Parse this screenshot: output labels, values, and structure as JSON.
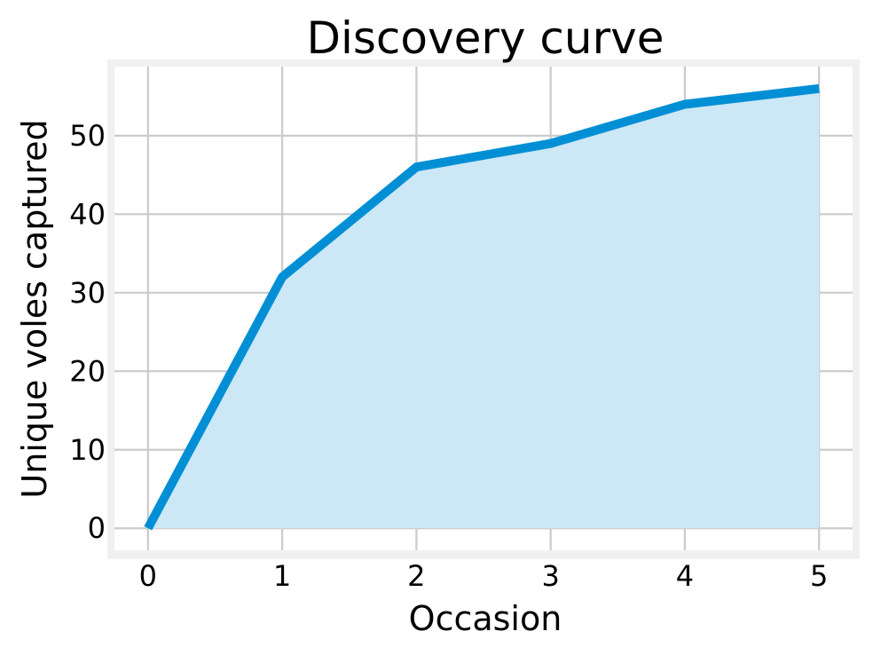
{
  "chart_data": {
    "type": "area",
    "title": "Discovery curve",
    "xlabel": "Occasion",
    "ylabel": "Unique voles captured",
    "x": [
      0,
      1,
      2,
      3,
      4,
      5
    ],
    "series": [
      {
        "values": [
          0,
          32,
          46,
          49,
          54,
          56
        ]
      }
    ],
    "xticks": [
      0,
      1,
      2,
      3,
      4,
      5
    ],
    "yticks": [
      0,
      10,
      20,
      30,
      40,
      50
    ],
    "xlim": [
      -0.25,
      5.25
    ],
    "ylim": [
      -2.8,
      58.8
    ],
    "grid": true,
    "line_color": "#008fd5",
    "fill_color": "#cce7f5"
  }
}
